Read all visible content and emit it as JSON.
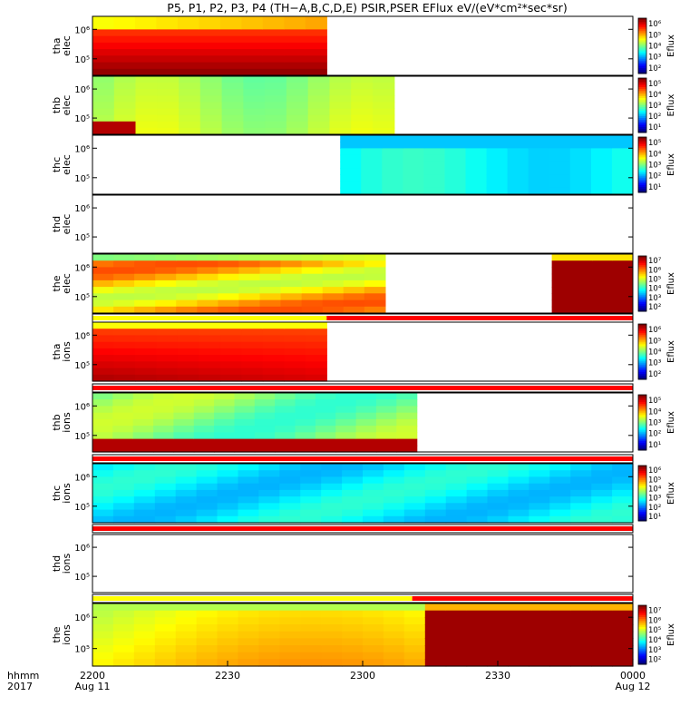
{
  "title": "P5, P1, P2, P3, P4 (TH−A,B,C,D,E) PSIR,PSER EFlux eV/(eV*cm²*sec*sr)",
  "colors": {
    "red": "#ff0000",
    "yellow": "#ffff00",
    "blank": "#ffffff"
  },
  "chart_data": {
    "type": "heatmap",
    "x_axis": {
      "ticks": [
        "2200",
        "2230",
        "2300",
        "2330",
        "0000"
      ],
      "sublabels": [
        "Aug 11",
        "",
        "",
        "",
        "Aug 12"
      ],
      "label_lines": [
        "hhmm",
        "2017"
      ],
      "range": [
        "2017-08-11 22:00",
        "2017-08-12 00:00"
      ]
    },
    "y_tick_labels": [
      "10⁵",
      "10⁶"
    ],
    "colorbar_label": "Eflux",
    "panels": [
      {
        "ylabel": [
          "tha",
          "elec"
        ],
        "coverage": [
          "22:00",
          "22:52"
        ],
        "cbar": [
          "10²",
          "10³",
          "10⁴",
          "10⁵",
          "10⁶"
        ],
        "note": "mostly red/orange, yellow upper band"
      },
      {
        "ylabel": [
          "thb",
          "elec"
        ],
        "coverage": [
          "22:00",
          "23:07"
        ],
        "cbar": [
          "10¹",
          "10²",
          "10³",
          "10⁴",
          "10⁵"
        ],
        "note": "green with low red corner"
      },
      {
        "ylabel": [
          "thc",
          "elec"
        ],
        "coverage": [
          "22:55",
          "00:00"
        ],
        "cbar": [
          "10¹",
          "10²",
          "10³",
          "10⁴",
          "10⁵"
        ],
        "note": "cyan/blue"
      },
      {
        "ylabel": [
          "thd",
          "elec"
        ],
        "coverage": null,
        "cbar": null,
        "note": "no data"
      },
      {
        "ylabel": [
          "the",
          "elec"
        ],
        "coverage": [
          "22:00",
          "23:05"
        ],
        "coverage2": [
          "23:42",
          "00:00"
        ],
        "cbar": [
          "10²",
          "10³",
          "10⁴",
          "10⁵",
          "10⁶",
          "10⁷"
        ],
        "note": "yellow/orange; red block at end"
      },
      {
        "ylabel": [
          "tha",
          "ions"
        ],
        "coverage": [
          "22:00",
          "22:52"
        ],
        "cbar": [
          "10²",
          "10³",
          "10⁴",
          "10⁵",
          "10⁶"
        ],
        "note": "red/orange"
      },
      {
        "ylabel": [
          "thb",
          "ions"
        ],
        "coverage": [
          "22:00",
          "23:12"
        ],
        "cbar": [
          "10¹",
          "10²",
          "10³",
          "10⁴",
          "10⁵"
        ],
        "note": "green with red lower band"
      },
      {
        "ylabel": [
          "thc",
          "ions"
        ],
        "coverage": [
          "22:00",
          "00:00"
        ],
        "cbar": [
          "10¹",
          "10²",
          "10³",
          "10⁴",
          "10⁵",
          "10⁶"
        ],
        "note": "cyan/blue"
      },
      {
        "ylabel": [
          "thd",
          "ions"
        ],
        "coverage": null,
        "cbar": null,
        "note": "no data"
      },
      {
        "ylabel": [
          "the",
          "ions"
        ],
        "coverage": [
          "22:00",
          "00:00"
        ],
        "cbar": [
          "10²",
          "10³",
          "10⁴",
          "10⁵",
          "10⁶",
          "10⁷"
        ],
        "note": "green/yellow then red after 23:11"
      }
    ],
    "flag_bars": [
      {
        "after_panel": 5,
        "segments": [
          {
            "from": "22:00",
            "to": "22:52",
            "color": "yellow"
          },
          {
            "from": "22:52",
            "to": "00:00",
            "color": "red"
          }
        ]
      },
      {
        "after_panel": 6,
        "segments": [
          {
            "from": "22:00",
            "to": "00:00",
            "color": "red"
          }
        ]
      },
      {
        "after_panel": 7,
        "segments": [
          {
            "from": "22:00",
            "to": "00:00",
            "color": "red"
          }
        ]
      },
      {
        "after_panel": 8,
        "segments": [
          {
            "from": "22:00",
            "to": "00:00",
            "color": "red"
          }
        ]
      },
      {
        "after_panel": 9,
        "segments": [
          {
            "from": "22:00",
            "to": "23:11",
            "color": "yellow"
          },
          {
            "from": "23:11",
            "to": "00:00",
            "color": "red"
          }
        ]
      }
    ]
  }
}
